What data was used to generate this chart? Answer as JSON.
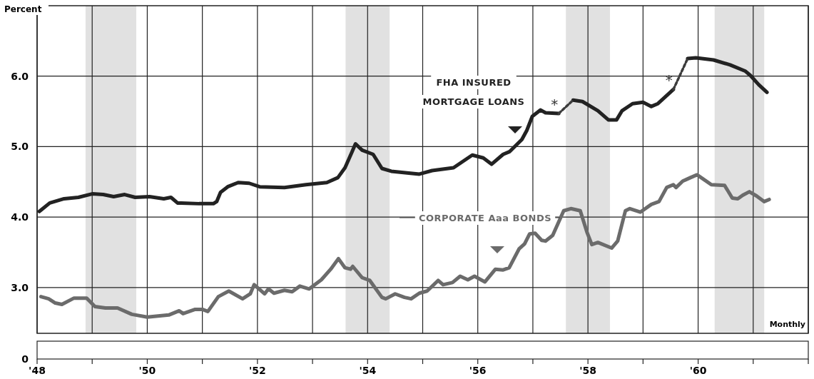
{
  "chart_data": {
    "type": "line",
    "ylabel": "Percent",
    "xlim": [
      1948,
      1962
    ],
    "xticks": [
      {
        "value": 1948,
        "label": "'48"
      },
      {
        "value": 1949,
        "label": null
      },
      {
        "value": 1950,
        "label": "'50"
      },
      {
        "value": 1951,
        "label": null
      },
      {
        "value": 1952,
        "label": "'52"
      },
      {
        "value": 1953,
        "label": null
      },
      {
        "value": 1954,
        "label": "'54"
      },
      {
        "value": 1955,
        "label": null
      },
      {
        "value": 1956,
        "label": "'56"
      },
      {
        "value": 1957,
        "label": null
      },
      {
        "value": 1958,
        "label": "'58"
      },
      {
        "value": 1959,
        "label": null
      },
      {
        "value": 1960,
        "label": "'60"
      },
      {
        "value": 1961,
        "label": null
      },
      {
        "value": 1962,
        "label": null
      }
    ],
    "ylim": [
      2.35,
      7.0
    ],
    "yticks": [
      {
        "value": 3,
        "label": "3.0"
      },
      {
        "value": 4,
        "label": "4.0"
      },
      {
        "value": 5,
        "label": "5.0"
      },
      {
        "value": 6,
        "label": "6.0"
      }
    ],
    "grid": true,
    "line_style": "solid",
    "marker": "none",
    "bands": [
      {
        "axis": "x",
        "from": 1948.88,
        "to": 1949.8,
        "color": "#d9d9d9"
      },
      {
        "axis": "x",
        "from": 1953.6,
        "to": 1954.4,
        "color": "#d9d9d9"
      },
      {
        "axis": "x",
        "from": 1957.6,
        "to": 1958.4,
        "color": "#d9d9d9"
      },
      {
        "axis": "x",
        "from": 1960.3,
        "to": 1961.2,
        "color": "#d9d9d9"
      }
    ],
    "annotations": [
      {
        "text": "*",
        "x": 1957.47,
        "y": 5.47
      },
      {
        "text": "*",
        "x": 1959.55,
        "y": 5.81
      },
      "Monthly",
      "0"
    ],
    "series": [
      {
        "name": "FHA INSURED MORTGAGE LOANS",
        "color": "#222222",
        "x": [
          1948.04,
          1948.23,
          1948.49,
          1948.75,
          1949.0,
          1949.2,
          1949.39,
          1949.59,
          1949.78,
          1950.04,
          1950.3,
          1950.43,
          1950.55,
          1950.94,
          1951.2,
          1951.26,
          1951.33,
          1951.46,
          1951.65,
          1951.85,
          1952.04,
          1952.49,
          1952.88,
          1953.26,
          1953.46,
          1953.59,
          1953.72,
          1953.78,
          1953.9,
          1954.1,
          1954.26,
          1954.43,
          1954.81,
          1954.94,
          1955.17,
          1955.56,
          1955.9,
          1956.1,
          1956.25,
          1956.46,
          1956.58,
          1956.8,
          1956.89,
          1956.99,
          1957.14,
          1957.23,
          1957.47,
          1957.6,
          1957.73,
          1957.9,
          1958.18,
          1958.37,
          1958.52,
          1958.62,
          1958.81,
          1959.0,
          1959.15,
          1959.27,
          1959.55,
          1959.7,
          1959.81,
          1959.96,
          1960.28,
          1960.58,
          1960.86,
          1960.95,
          1961.1,
          1961.25
        ],
        "values": [
          4.08,
          4.2,
          4.26,
          4.28,
          4.33,
          4.32,
          4.29,
          4.32,
          4.28,
          4.29,
          4.26,
          4.28,
          4.2,
          4.19,
          4.19,
          4.22,
          4.35,
          4.43,
          4.49,
          4.48,
          4.43,
          4.42,
          4.46,
          4.49,
          4.56,
          4.7,
          4.93,
          5.04,
          4.95,
          4.89,
          4.69,
          4.65,
          4.62,
          4.61,
          4.66,
          4.7,
          4.88,
          4.84,
          4.75,
          4.89,
          4.93,
          5.1,
          5.23,
          5.43,
          5.52,
          5.48,
          5.47,
          null,
          5.66,
          5.64,
          5.51,
          5.38,
          5.38,
          5.51,
          5.61,
          5.63,
          5.57,
          5.61,
          5.81,
          null,
          6.25,
          6.26,
          6.23,
          6.16,
          6.07,
          6.01,
          5.88,
          5.77
        ]
      },
      {
        "color": "#3c3c3c",
        "line_style": "dotted",
        "x": [
          1957.47,
          1957.73
        ],
        "values": [
          5.47,
          5.66
        ]
      },
      {
        "color": "#3c3c3c",
        "line_style": "dotted",
        "x": [
          1959.55,
          1959.81
        ],
        "values": [
          5.81,
          6.25
        ]
      },
      {
        "name": "CORPORATE Aaa BONDS",
        "color": "#6b6b6b",
        "x": [
          1948.07,
          1948.21,
          1948.33,
          1948.45,
          1948.67,
          1948.9,
          1949.05,
          1949.24,
          1949.46,
          1949.72,
          1950.0,
          1950.39,
          1950.58,
          1950.65,
          1950.87,
          1951.0,
          1951.1,
          1951.29,
          1951.48,
          1951.73,
          1951.87,
          1951.94,
          1952.13,
          1952.2,
          1952.3,
          1952.49,
          1952.63,
          1952.77,
          1952.94,
          1953.16,
          1953.33,
          1953.47,
          1953.59,
          1953.69,
          1953.73,
          1953.9,
          1954.04,
          1954.26,
          1954.33,
          1954.5,
          1954.67,
          1954.79,
          1954.94,
          1955.08,
          1955.28,
          1955.37,
          1955.54,
          1955.68,
          1955.82,
          1955.94,
          1956.13,
          1956.32,
          1956.46,
          1956.57,
          1956.75,
          1956.85,
          1956.94,
          1957.04,
          1957.16,
          1957.23,
          1957.36,
          1957.56,
          1957.69,
          1957.86,
          1957.98,
          1958.07,
          1958.18,
          1958.43,
          1958.54,
          1958.68,
          1958.76,
          1958.95,
          1959.15,
          1959.29,
          1959.43,
          1959.55,
          1959.6,
          1959.72,
          1959.86,
          1959.98,
          1960.24,
          1960.48,
          1960.62,
          1960.72,
          1960.81,
          1960.93,
          1961.06,
          1961.2,
          1961.29
        ],
        "values": [
          2.87,
          2.84,
          2.78,
          2.76,
          2.85,
          2.85,
          2.73,
          2.71,
          2.71,
          2.62,
          2.58,
          2.61,
          2.67,
          2.63,
          2.69,
          2.69,
          2.66,
          2.87,
          2.95,
          2.84,
          2.91,
          3.04,
          2.91,
          2.98,
          2.92,
          2.96,
          2.94,
          3.02,
          2.98,
          3.11,
          3.26,
          3.41,
          3.28,
          3.26,
          3.3,
          3.14,
          3.1,
          2.86,
          2.84,
          2.91,
          2.86,
          2.84,
          2.92,
          2.95,
          3.1,
          3.04,
          3.07,
          3.16,
          3.11,
          3.16,
          3.08,
          3.26,
          3.25,
          3.28,
          3.55,
          3.62,
          3.76,
          3.77,
          3.67,
          3.66,
          3.74,
          4.09,
          4.12,
          4.09,
          3.79,
          3.61,
          3.64,
          3.56,
          3.66,
          4.09,
          4.12,
          4.07,
          4.18,
          4.22,
          4.42,
          4.46,
          4.42,
          4.51,
          4.56,
          4.6,
          4.46,
          4.45,
          4.27,
          4.26,
          4.31,
          4.36,
          4.3,
          4.22,
          4.25
        ]
      }
    ]
  }
}
